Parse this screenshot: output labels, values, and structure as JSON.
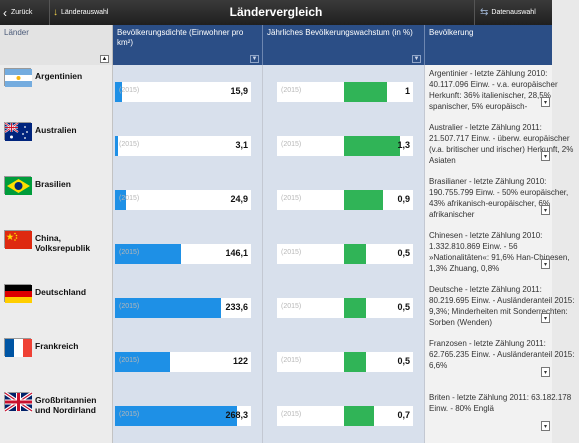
{
  "topbar": {
    "back_label": "Zurück",
    "country_select_label": "Länderauswahl",
    "title": "Ländervergleich",
    "data_select_label": "Datenauswahl"
  },
  "columns": {
    "land": "Länder",
    "density": "Bevölkerungsdichte (Einwohner pro km²)",
    "growth": "Jährliches Bevölkerungswachstum (in %)",
    "population": "Bevölkerung"
  },
  "colors": {
    "density_bar": "#1e90e6",
    "growth_bar": "#30b457",
    "header_blue": "#2b4e86"
  },
  "rows": [
    {
      "name": "Argentinien",
      "flag": "argentina-flag",
      "density_year": "(2015)",
      "density": "15,9",
      "density_value": 15.9,
      "growth_year": "(2015)",
      "growth": "1",
      "growth_value": 1.0,
      "pop_text": "Argentinier - letzte Zählung 2010: 40.117.096 Einw. - v.a. europäischer Herkunft: 36% italienischer, 28,5% spanischer, 5% europäisch-"
    },
    {
      "name": "Australien",
      "flag": "australia-flag",
      "density_year": "(2015)",
      "density": "3,1",
      "density_value": 3.1,
      "growth_year": "(2015)",
      "growth": "1,3",
      "growth_value": 1.3,
      "pop_text": "Australier - letzte Zählung 2011: 21.507.717 Einw. - überw. europäischer (v.a. britischer und irischer) Herkunft, 2% Asiaten"
    },
    {
      "name": "Brasilien",
      "flag": "brazil-flag",
      "density_year": "(2015)",
      "density": "24,9",
      "density_value": 24.9,
      "growth_year": "(2015)",
      "growth": "0,9",
      "growth_value": 0.9,
      "pop_text": "Brasilianer - letzte Zählung 2010: 190.755.799 Einw. - 50% europäischer, 43% afrikanisch-europäischer, 6% afrikanischer"
    },
    {
      "name": "China, Volksrepublik",
      "flag": "china-flag",
      "density_year": "(2015)",
      "density": "146,1",
      "density_value": 146.1,
      "growth_year": "(2015)",
      "growth": "0,5",
      "growth_value": 0.5,
      "pop_text": "Chinesen - letzte Zählung 2010: 1.332.810.869 Einw. - 56 »Nationalitäten«: 91,6% Han-Chinesen, 1,3% Zhuang, 0,8%"
    },
    {
      "name": "Deutschland",
      "flag": "germany-flag",
      "density_year": "(2015)",
      "density": "233,6",
      "density_value": 233.6,
      "growth_year": "(2015)",
      "growth": "0,5",
      "growth_value": 0.5,
      "pop_text": "Deutsche - letzte Zählung 2011: 80.219.695 Einw. - Ausländeranteil 2015: 9,3%; Minderheiten mit Sonderrechten: Sorben (Wenden)"
    },
    {
      "name": "Frankreich",
      "flag": "france-flag",
      "density_year": "(2015)",
      "density": "122",
      "density_value": 122,
      "growth_year": "(2015)",
      "growth": "0,5",
      "growth_value": 0.5,
      "pop_text": "Franzosen - letzte Zählung 2011: 62.765.235 Einw. - Ausländeranteil 2015: 6,6%"
    },
    {
      "name": "Großbritannien und Nordirland",
      "flag": "uk-flag",
      "density_year": "(2015)",
      "density": "268,3",
      "density_value": 268.3,
      "growth_year": "(2015)",
      "growth": "0,7",
      "growth_value": 0.7,
      "pop_text": "Briten - letzte Zählung 2011: 63.182.178 Einw. - 80% Englä"
    }
  ]
}
